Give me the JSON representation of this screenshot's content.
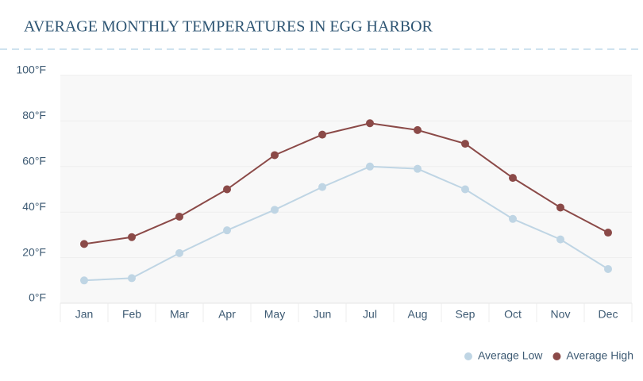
{
  "chart_data": {
    "type": "line",
    "title": "AVERAGE MONTHLY TEMPERATURES IN EGG HARBOR",
    "categories": [
      "Jan",
      "Feb",
      "Mar",
      "Apr",
      "May",
      "Jun",
      "Jul",
      "Aug",
      "Sep",
      "Oct",
      "Nov",
      "Dec"
    ],
    "series": [
      {
        "name": "Average Low",
        "color": "#bfd5e4",
        "values": [
          10,
          11,
          22,
          32,
          41,
          51,
          60,
          59,
          50,
          37,
          28,
          15
        ]
      },
      {
        "name": "Average High",
        "color": "#8b4a48",
        "values": [
          26,
          29,
          38,
          50,
          65,
          74,
          79,
          76,
          70,
          55,
          42,
          31
        ]
      }
    ],
    "ylim": [
      0,
      100
    ],
    "yticks": [
      {
        "value": 0,
        "label": "0°F"
      },
      {
        "value": 20,
        "label": "20°F"
      },
      {
        "value": 40,
        "label": "40°F"
      },
      {
        "value": 60,
        "label": "60°F"
      },
      {
        "value": 80,
        "label": "80°F"
      },
      {
        "value": 100,
        "label": "100°F"
      }
    ],
    "grid": true,
    "legend": "bottom-right"
  }
}
